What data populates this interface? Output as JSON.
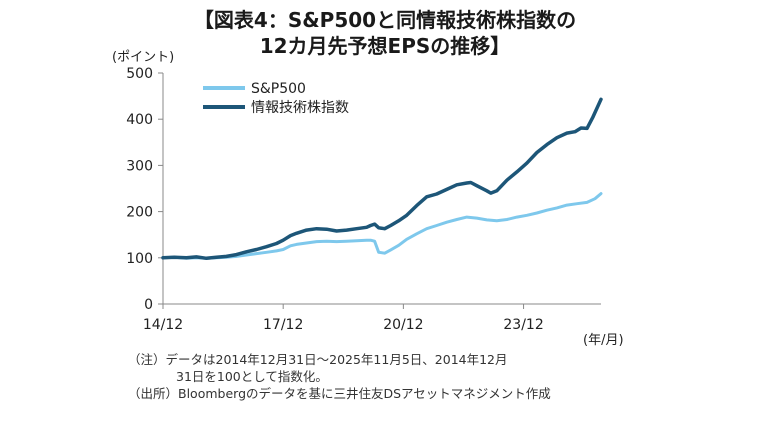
{
  "title_line1": "【図表4：S&P500と同情報技術株指数の",
  "title_line2": "12カ月先予想EPSの推移】",
  "notes": {
    "note1": "（注）データは2014年12月31日～2025年11月5日、2014年12月",
    "note2": "31日を100として指数化。",
    "note3": "（出所）Bloombergのデータを基に三井住友DSアセットマネジメント作成"
  },
  "chart_data": {
    "type": "line",
    "title": "S&P500と同情報技術株指数の12カ月先予想EPSの推移",
    "ylabel": "(ポイント)",
    "xlabel": "(年/月)",
    "ylim": [
      0,
      500
    ],
    "yticks": [
      "0",
      "100",
      "200",
      "300",
      "400",
      "500"
    ],
    "ytick_values": [
      0,
      100,
      200,
      300,
      400,
      500
    ],
    "xlim": [
      2014.917,
      2025.85
    ],
    "xticks": [
      "14/12",
      "17/12",
      "20/12",
      "23/12"
    ],
    "xtick_values": [
      2014.917,
      2017.917,
      2020.917,
      2023.917
    ],
    "legend_position": "top-left",
    "colors": {
      "sp500": "#7ec8ec",
      "tech": "#1d5678",
      "axis": "#888888"
    },
    "series": [
      {
        "name": "S&P500",
        "x": [
          2014.917,
          2015.2,
          2015.5,
          2015.75,
          2016.0,
          2016.25,
          2016.5,
          2016.75,
          2017.0,
          2017.25,
          2017.5,
          2017.75,
          2017.917,
          2018.1,
          2018.25,
          2018.5,
          2018.75,
          2019.0,
          2019.25,
          2019.5,
          2019.75,
          2020.0,
          2020.1,
          2020.2,
          2020.3,
          2020.45,
          2020.6,
          2020.8,
          2021.0,
          2021.25,
          2021.5,
          2021.75,
          2022.0,
          2022.25,
          2022.5,
          2022.75,
          2023.0,
          2023.25,
          2023.5,
          2023.75,
          2024.0,
          2024.25,
          2024.5,
          2024.75,
          2025.0,
          2025.25,
          2025.5,
          2025.7,
          2025.85
        ],
        "values": [
          100,
          101,
          99,
          100,
          99,
          100,
          101,
          103,
          106,
          109,
          112,
          115,
          118,
          126,
          129,
          132,
          135,
          136,
          135,
          136,
          137,
          138,
          138,
          136,
          112,
          110,
          117,
          127,
          140,
          152,
          163,
          170,
          177,
          183,
          188,
          186,
          182,
          180,
          183,
          188,
          192,
          197,
          203,
          208,
          214,
          217,
          220,
          228,
          239
        ]
      },
      {
        "name": "情報技術株指数",
        "x": [
          2014.917,
          2015.2,
          2015.5,
          2015.75,
          2016.0,
          2016.25,
          2016.5,
          2016.75,
          2017.0,
          2017.25,
          2017.5,
          2017.75,
          2017.917,
          2018.1,
          2018.25,
          2018.5,
          2018.75,
          2019.0,
          2019.25,
          2019.5,
          2019.75,
          2020.0,
          2020.1,
          2020.2,
          2020.3,
          2020.45,
          2020.6,
          2020.8,
          2021.0,
          2021.25,
          2021.5,
          2021.75,
          2022.0,
          2022.25,
          2022.5,
          2022.6,
          2022.75,
          2023.0,
          2023.1,
          2023.25,
          2023.5,
          2023.75,
          2024.0,
          2024.25,
          2024.5,
          2024.75,
          2025.0,
          2025.2,
          2025.35,
          2025.5,
          2025.65,
          2025.85
        ],
        "values": [
          100,
          101,
          100,
          102,
          99,
          101,
          103,
          107,
          113,
          118,
          124,
          131,
          138,
          148,
          153,
          160,
          163,
          162,
          158,
          160,
          163,
          166,
          170,
          173,
          165,
          163,
          170,
          180,
          192,
          213,
          232,
          238,
          248,
          258,
          262,
          263,
          256,
          245,
          240,
          245,
          268,
          286,
          305,
          328,
          345,
          360,
          370,
          373,
          381,
          380,
          405,
          443
        ]
      }
    ]
  }
}
